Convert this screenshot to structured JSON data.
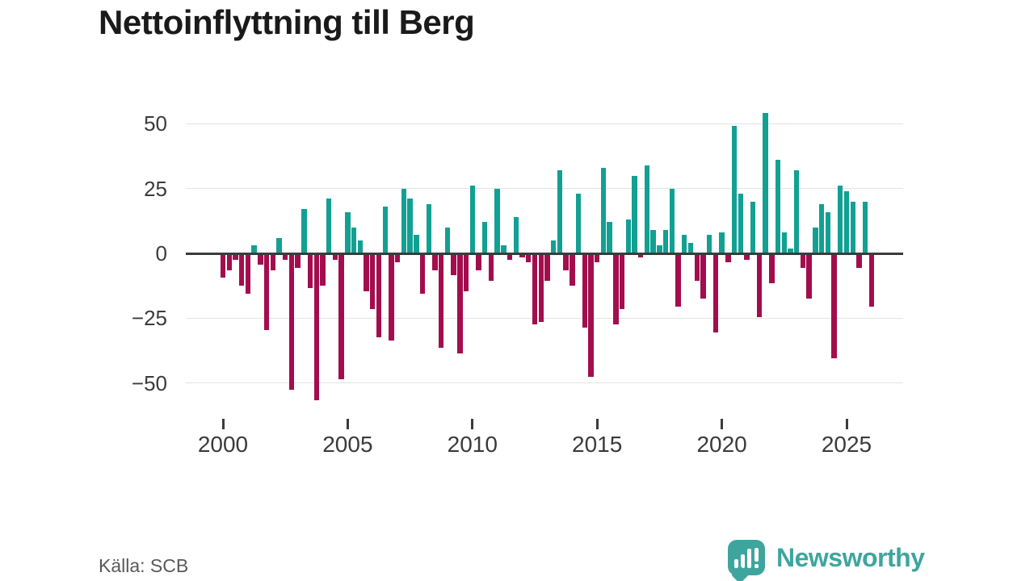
{
  "title": "Nettoinflyttning till Berg",
  "source": "Källa: SCB",
  "logo": {
    "text": "Newsworthy"
  },
  "colors": {
    "positive": "#12A093",
    "negative": "#A30D4E",
    "axis": "#3B3B3B",
    "grid": "#E3E3E3",
    "logo": "#3EA59E",
    "title_text": "#1A1A1A",
    "tick_text": "#3B3B3B",
    "source_text": "#595959"
  },
  "chart_data": {
    "type": "bar",
    "title": "Nettoinflyttning till Berg",
    "frequency": "quarterly",
    "start_period": "2000 Q1",
    "end_period": "2026 Q1",
    "xlabel": "",
    "ylabel": "",
    "x_ticks": [
      2000,
      2005,
      2010,
      2015,
      2020,
      2025
    ],
    "y_ticks": [
      50,
      25,
      0,
      -25,
      -50
    ],
    "ylim": [
      -60,
      57
    ],
    "grid": "horizontal",
    "legend": "none",
    "positive_color_meaning": "net in-migration",
    "negative_color_meaning": "net out-migration",
    "values": [
      -9,
      -6,
      -2,
      -12,
      -15,
      3,
      -4,
      -29,
      -6,
      6,
      -2,
      -52,
      -5,
      17,
      -13,
      -56,
      -12,
      21,
      -2,
      -48,
      16,
      10,
      5,
      -14,
      -21,
      -32,
      18,
      -33,
      -3,
      25,
      21,
      7,
      -15,
      19,
      -6,
      -36,
      10,
      -8,
      -38,
      -14,
      26,
      -6,
      12,
      -10,
      25,
      3,
      -2,
      14,
      -1,
      -3,
      -27,
      -26,
      -10,
      5,
      32,
      -6,
      -12,
      23,
      -28,
      -47,
      -3,
      33,
      12,
      -27,
      -21,
      13,
      30,
      -1,
      34,
      9,
      3,
      9,
      25,
      -20,
      7,
      4,
      -10,
      -17,
      7,
      -30,
      8,
      -3,
      49,
      23,
      -2,
      20,
      -24,
      54,
      -11,
      36,
      8,
      2,
      32,
      -5,
      -17,
      10,
      19,
      16,
      -40,
      26,
      24,
      20,
      -5,
      20,
      -20
    ]
  }
}
